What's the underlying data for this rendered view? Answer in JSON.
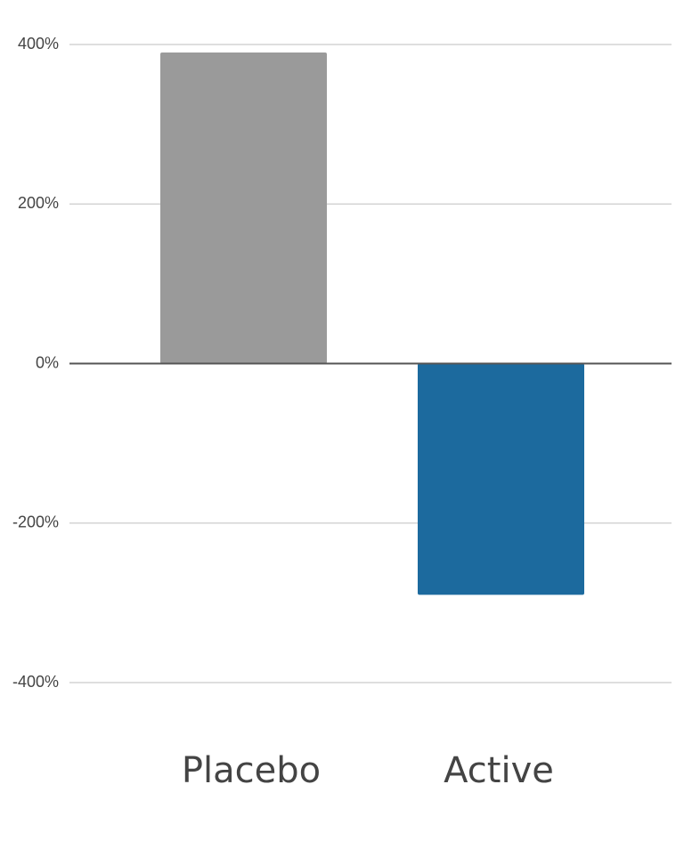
{
  "chart_data": {
    "type": "bar",
    "categories": [
      "Placebo",
      "Active"
    ],
    "values": [
      390,
      -290
    ],
    "colors": [
      "#9a9a9a",
      "#1c6a9e"
    ],
    "ylim": [
      -400,
      400
    ],
    "yticks": [
      {
        "value": -400,
        "label": "-400%"
      },
      {
        "value": -200,
        "label": "-200%"
      },
      {
        "value": 0,
        "label": "0%"
      },
      {
        "value": 200,
        "label": "200%"
      },
      {
        "value": 400,
        "label": "400%"
      }
    ],
    "grid": true
  }
}
